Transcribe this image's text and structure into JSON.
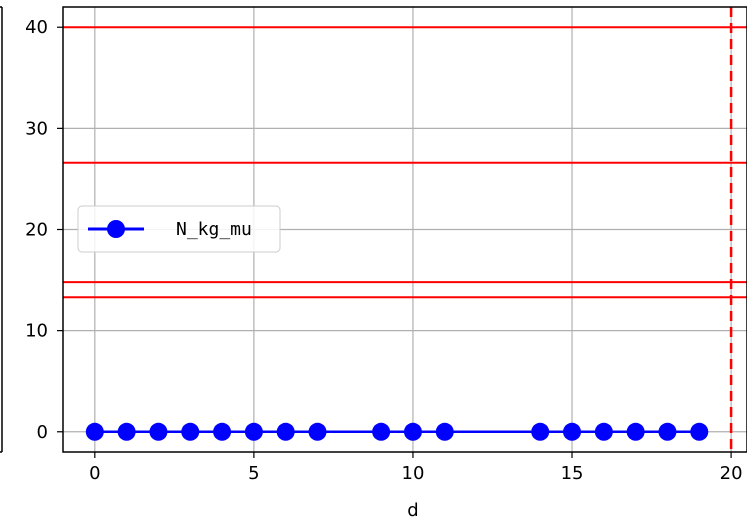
{
  "chart_data": {
    "type": "line",
    "title": "",
    "xlabel": "d",
    "ylabel": "",
    "xlim": [
      -1,
      20.5
    ],
    "ylim": [
      -2,
      42
    ],
    "x_ticks": [
      0,
      5,
      10,
      15,
      20
    ],
    "y_ticks": [
      0,
      10,
      20,
      30,
      40
    ],
    "grid": true,
    "legend_position": "center-left",
    "series": [
      {
        "name": "N_kg_mu",
        "color": "#0000ff",
        "marker": "circle",
        "x": [
          0,
          1,
          2,
          3,
          4,
          5,
          6,
          7,
          9,
          10,
          11,
          14,
          15,
          16,
          17,
          18,
          19
        ],
        "y": [
          0,
          0,
          0,
          0,
          0,
          0,
          0,
          0,
          0,
          0,
          0,
          0,
          0,
          0,
          0,
          0,
          0
        ]
      }
    ],
    "hlines": [
      {
        "y": 40,
        "color": "#ff0000",
        "style": "solid"
      },
      {
        "y": 26.6,
        "color": "#ff0000",
        "style": "solid"
      },
      {
        "y": 14.8,
        "color": "#ff0000",
        "style": "solid"
      },
      {
        "y": 13.3,
        "color": "#ff0000",
        "style": "solid"
      }
    ],
    "vlines": [
      {
        "x": 20,
        "color": "#ff0000",
        "style": "dashed"
      }
    ]
  }
}
